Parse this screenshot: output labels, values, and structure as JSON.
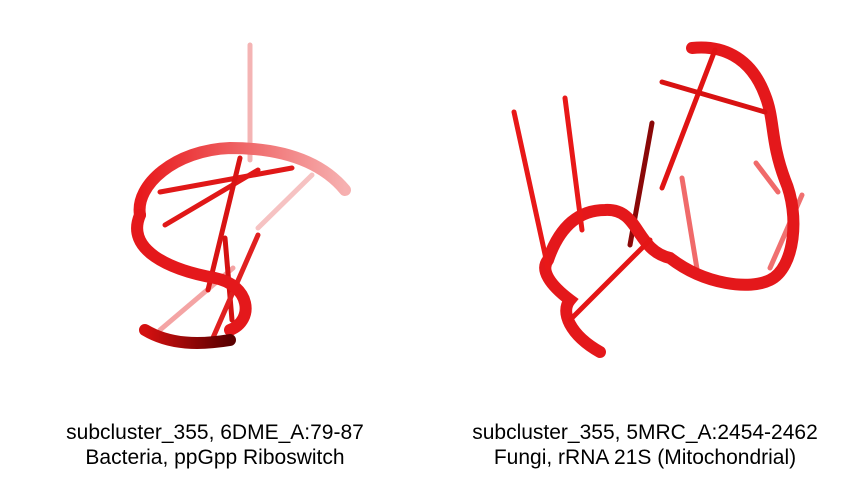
{
  "colors": {
    "background": "#ffffff",
    "rna_red": "#e8191c",
    "rna_dark": "#6e0000",
    "rna_light": "#f6a8a8",
    "caption_text": "#000000"
  },
  "panels": [
    {
      "caption_line1": "subcluster_355, 6DME_A:79-87",
      "caption_line2": "Bacteria, ppGpp Riboswitch"
    },
    {
      "caption_line1": "subcluster_355, 5MRC_A:2454-2462",
      "caption_line2": "Fungi, rRNA 21S (Mitochondrial)"
    }
  ]
}
